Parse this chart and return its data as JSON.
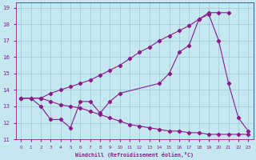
{
  "xlabel": "Windchill (Refroidissement éolien,°C)",
  "bg_color": "#c5e8f0",
  "grid_color": "#9dc8d8",
  "line_color": "#8b1a8b",
  "xlim": [
    -0.5,
    23.5
  ],
  "ylim": [
    11,
    19.3
  ],
  "xticks": [
    0,
    1,
    2,
    3,
    4,
    5,
    6,
    7,
    8,
    9,
    10,
    11,
    12,
    13,
    14,
    15,
    16,
    17,
    18,
    19,
    20,
    21,
    22,
    23
  ],
  "yticks": [
    11,
    12,
    13,
    14,
    15,
    16,
    17,
    18,
    19
  ],
  "line1_x": [
    0,
    1,
    2,
    3,
    4,
    5,
    6,
    7,
    8,
    9,
    10,
    14,
    15,
    16,
    17,
    18,
    19,
    20,
    21,
    22,
    23
  ],
  "line1_y": [
    13.5,
    13.5,
    13.0,
    12.2,
    12.2,
    11.7,
    13.3,
    13.3,
    12.6,
    13.3,
    13.8,
    14.4,
    15.0,
    16.3,
    16.7,
    18.3,
    18.6,
    17.0,
    14.4,
    12.3,
    11.5
  ],
  "line2_x": [
    0,
    1,
    2,
    3,
    4,
    5,
    6,
    7,
    8,
    9,
    10,
    11,
    12,
    13,
    14,
    15,
    16,
    17,
    18,
    19,
    20,
    21
  ],
  "line2_y": [
    13.5,
    13.5,
    13.5,
    13.8,
    14.0,
    14.2,
    14.4,
    14.6,
    14.9,
    15.2,
    15.5,
    15.9,
    16.3,
    16.6,
    17.0,
    17.3,
    17.6,
    17.9,
    18.3,
    18.7,
    18.7,
    18.7
  ],
  "line3_x": [
    0,
    1,
    2,
    3,
    4,
    5,
    6,
    7,
    8,
    9,
    10,
    11,
    12,
    13,
    14,
    15,
    16,
    17,
    18,
    19,
    20,
    21,
    22,
    23
  ],
  "line3_y": [
    13.5,
    13.5,
    13.5,
    13.3,
    13.1,
    13.0,
    12.9,
    12.7,
    12.5,
    12.3,
    12.1,
    11.9,
    11.8,
    11.7,
    11.6,
    11.5,
    11.5,
    11.4,
    11.4,
    11.3,
    11.3,
    11.3,
    11.3,
    11.3
  ]
}
